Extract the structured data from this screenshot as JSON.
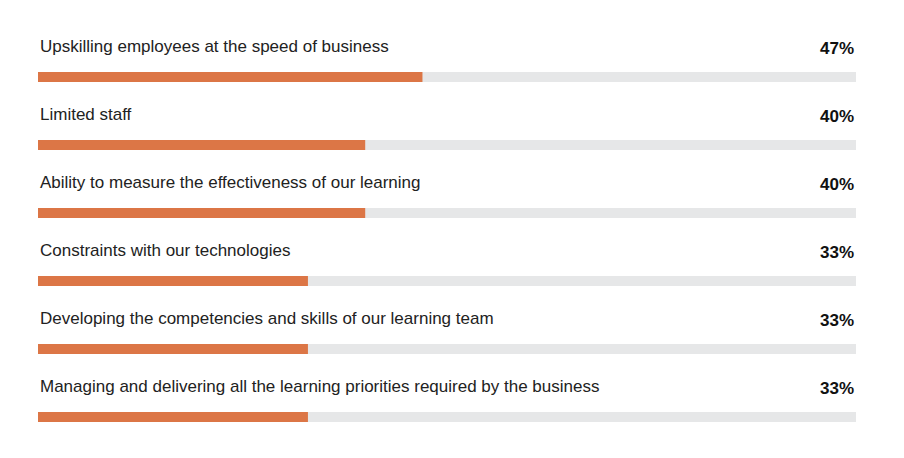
{
  "chart_data": {
    "type": "bar",
    "orientation": "horizontal",
    "categories": [
      "Upskilling employees at the speed of business",
      "Limited staff",
      "Ability to measure the effectiveness of our learning",
      "Constraints with our technologies",
      "Developing the competencies and skills of our learning team",
      "Managing and delivering all the learning priorities required by the business"
    ],
    "values": [
      47,
      40,
      40,
      33,
      33,
      33
    ],
    "value_labels": [
      "47%",
      "40%",
      "40%",
      "33%",
      "33%",
      "33%"
    ],
    "data_labels": true,
    "color": "#dc7646",
    "xlim": [
      0,
      100
    ],
    "grid": false,
    "tick_labels": false
  }
}
